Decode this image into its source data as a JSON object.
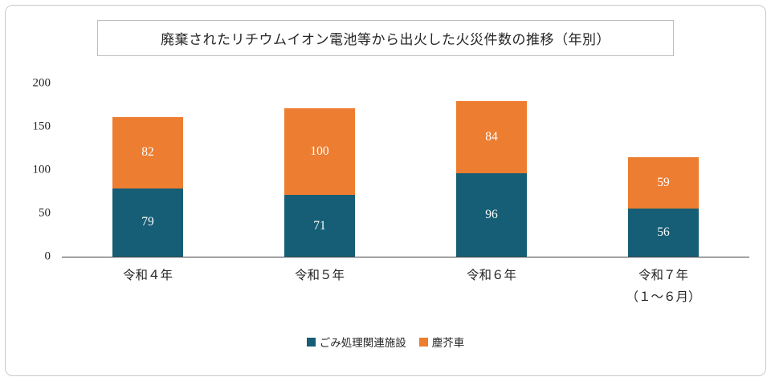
{
  "chart_data": {
    "type": "bar",
    "stacked": true,
    "title": "廃棄されたリチウムイオン電池等から出火した火災件数の推移（年別）",
    "categories": [
      [
        "令和４年"
      ],
      [
        "令和５年"
      ],
      [
        "令和６年"
      ],
      [
        "令和７年",
        "（１～６月）"
      ]
    ],
    "series": [
      {
        "name": "ごみ処理関連施設",
        "color": "#155e75",
        "values": [
          79,
          71,
          96,
          56
        ]
      },
      {
        "name": "塵芥車",
        "color": "#ed7d31",
        "values": [
          82,
          100,
          84,
          59
        ]
      }
    ],
    "totals": [
      161,
      171,
      180,
      115
    ],
    "ylim": [
      0,
      200
    ],
    "yticks": [
      0,
      50,
      100,
      150,
      200
    ],
    "grid": false,
    "legend_position": "bottom",
    "axis_line_color": "#3f3f3f"
  }
}
